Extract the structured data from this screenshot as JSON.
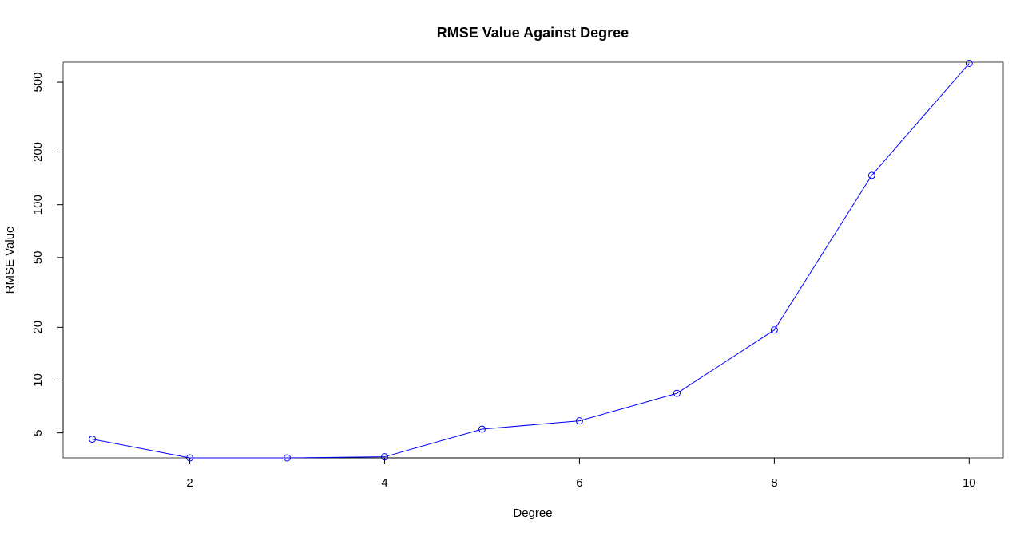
{
  "chart_data": {
    "type": "line",
    "title": "RMSE Value Against Degree",
    "xlabel": "Degree",
    "ylabel": "RMSE Value",
    "x": [
      1,
      2,
      3,
      4,
      5,
      6,
      7,
      8,
      9,
      10
    ],
    "series": [
      {
        "values": [
          4.6,
          3.6,
          3.6,
          3.65,
          5.25,
          5.85,
          8.4,
          19.3,
          147,
          640
        ]
      }
    ],
    "xlim": [
      0.7,
      10.35
    ],
    "ylim": [
      3.6,
      650
    ],
    "yscale": "log",
    "xticks": [
      2,
      4,
      6,
      8,
      10
    ],
    "yticks": [
      5,
      10,
      20,
      50,
      100,
      200,
      500
    ],
    "marker": "open-circle",
    "line_color": "#0000ff",
    "grid": false,
    "legend": "none"
  }
}
